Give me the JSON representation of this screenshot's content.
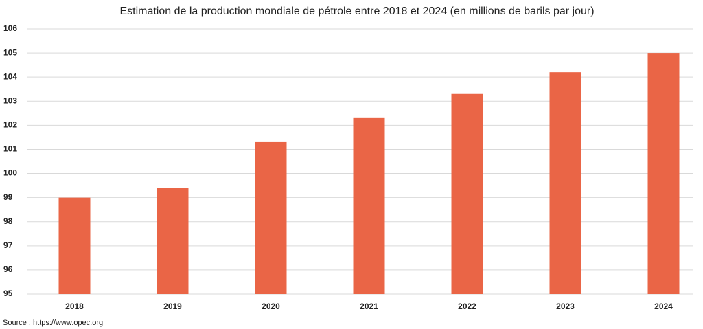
{
  "chart_data": {
    "type": "bar",
    "title": "Estimation de la production mondiale de pétrole entre 2018 et 2024 (en millions de barils par jour)",
    "categories": [
      "2018",
      "2019",
      "2020",
      "2021",
      "2022",
      "2023",
      "2024"
    ],
    "values": [
      99.0,
      99.4,
      101.3,
      102.3,
      103.3,
      104.2,
      105.0
    ],
    "color": "#ea6546",
    "ylim": [
      95,
      106
    ],
    "yticks": [
      95,
      96,
      97,
      98,
      99,
      100,
      101,
      102,
      103,
      104,
      105,
      106
    ],
    "grid": true,
    "source": "Source : https://www.opec.org"
  }
}
